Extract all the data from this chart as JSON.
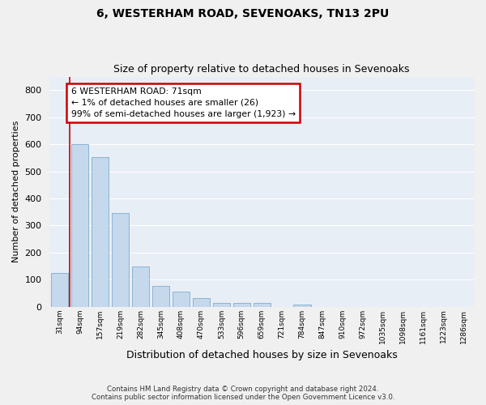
{
  "title": "6, WESTERHAM ROAD, SEVENOAKS, TN13 2PU",
  "subtitle": "Size of property relative to detached houses in Sevenoaks",
  "xlabel": "Distribution of detached houses by size in Sevenoaks",
  "ylabel": "Number of detached properties",
  "bins": [
    "31sqm",
    "94sqm",
    "157sqm",
    "219sqm",
    "282sqm",
    "345sqm",
    "408sqm",
    "470sqm",
    "533sqm",
    "596sqm",
    "659sqm",
    "721sqm",
    "784sqm",
    "847sqm",
    "910sqm",
    "972sqm",
    "1035sqm",
    "1098sqm",
    "1161sqm",
    "1223sqm",
    "1286sqm"
  ],
  "values": [
    125,
    600,
    553,
    347,
    148,
    76,
    56,
    33,
    15,
    14,
    14,
    0,
    8,
    0,
    0,
    0,
    0,
    0,
    0,
    0,
    0
  ],
  "bar_color": "#c5d8ec",
  "bar_edge_color": "#8ab4d4",
  "annotation_text": "6 WESTERHAM ROAD: 71sqm\n← 1% of detached houses are smaller (26)\n99% of semi-detached houses are larger (1,923) →",
  "annotation_box_color": "#ffffff",
  "annotation_box_edge": "#cc0000",
  "vline_color": "#cc0000",
  "ylim": [
    0,
    850
  ],
  "yticks": [
    0,
    100,
    200,
    300,
    400,
    500,
    600,
    700,
    800
  ],
  "background_color": "#e8eef6",
  "grid_color": "#ffffff",
  "footer_line1": "Contains HM Land Registry data © Crown copyright and database right 2024.",
  "footer_line2": "Contains public sector information licensed under the Open Government Licence v3.0."
}
